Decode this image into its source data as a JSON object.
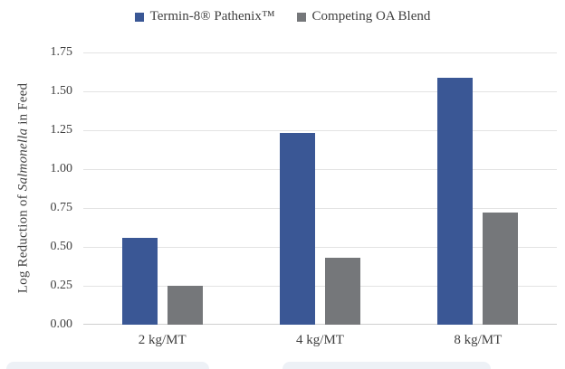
{
  "legend": {
    "items": [
      {
        "label": "Termin-8® Pathenix™",
        "color": "#3a5795"
      },
      {
        "label": "Competing OA Blend",
        "color": "#75777a"
      }
    ]
  },
  "y_axis": {
    "title_prefix": "Log Reduction of ",
    "title_italic": "Salmonella",
    "title_suffix": " in Feed"
  },
  "chart_data": {
    "type": "bar",
    "title": "",
    "categories": [
      "2 kg/MT",
      "4 kg/MT",
      "8 kg/MT"
    ],
    "series": [
      {
        "name": "Termin-8® Pathenix™",
        "color": "#3a5795",
        "values": [
          0.56,
          1.23,
          1.59
        ]
      },
      {
        "name": "Competing OA Blend",
        "color": "#75777a",
        "values": [
          0.25,
          0.43,
          0.72
        ]
      }
    ],
    "xlabel": "",
    "ylabel": "Log Reduction of Salmonella in Feed",
    "ylim": [
      0,
      1.75
    ],
    "ytick_step": 0.25,
    "ytick_format_decimals": 2,
    "grid": true,
    "legend_position": "top"
  }
}
